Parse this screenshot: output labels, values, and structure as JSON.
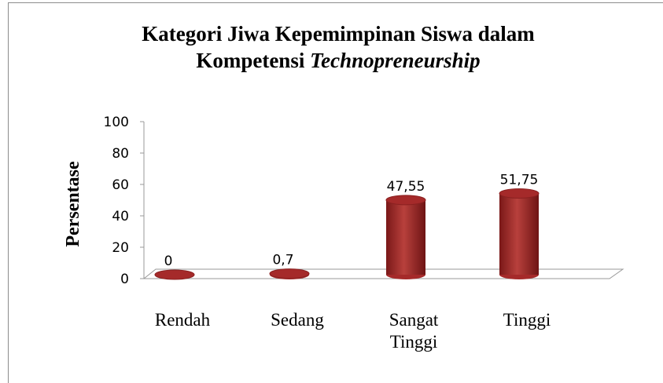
{
  "chart_data": {
    "type": "bar",
    "title": [
      "Kategori Jiwa Kepemimpinan Siswa dalam",
      "Kompetensi",
      "Technopreneurship"
    ],
    "ylabel": "Persentase",
    "categories": [
      "Rendah",
      "Sedang",
      "Sangat Tinggi",
      "Tinggi"
    ],
    "values": [
      0,
      0.7,
      47.55,
      51.75
    ],
    "value_labels": [
      "0",
      "0,7",
      "47,55",
      "51,75"
    ],
    "color": "#a52a2a",
    "ylim": [
      0,
      100
    ],
    "yticks": [
      0,
      20,
      40,
      60,
      80,
      100
    ]
  }
}
